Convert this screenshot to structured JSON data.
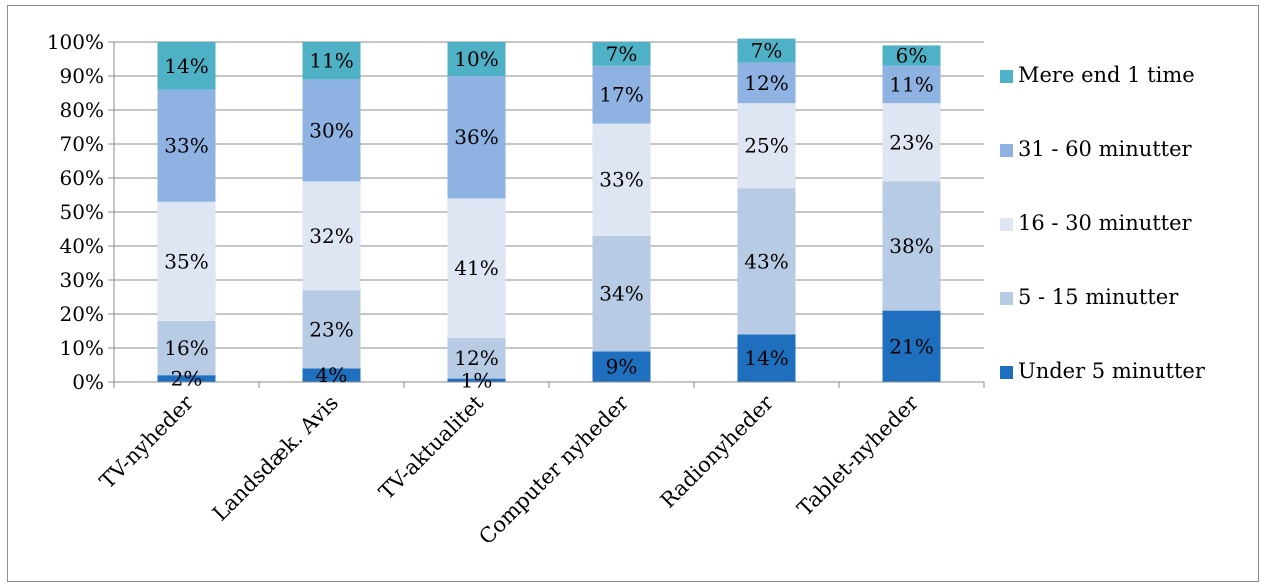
{
  "chart_data": {
    "type": "bar",
    "stacked": true,
    "percent_stacked": true,
    "categories": [
      "TV-nyheder",
      "Landsdæk. Avis",
      "TV-aktualitet",
      "Computer nyheder",
      "Radionyheder",
      "Tablet-nyheder"
    ],
    "series": [
      {
        "name": "Under 5 minutter",
        "color": "#1f6fbf",
        "values": [
          2,
          4,
          1,
          9,
          14,
          21
        ],
        "labels": [
          "2%",
          "4%",
          "1%",
          "9%",
          "14%",
          "21%"
        ]
      },
      {
        "name": "5 - 15 minutter",
        "color": "#b7cbe4",
        "values": [
          16,
          23,
          12,
          34,
          43,
          38
        ],
        "labels": [
          "16%",
          "23%",
          "12%",
          "34%",
          "43%",
          "38%"
        ]
      },
      {
        "name": "16 - 30 minutter",
        "color": "#dde6f2",
        "values": [
          35,
          32,
          41,
          33,
          25,
          23
        ],
        "labels": [
          "35%",
          "32%",
          "41%",
          "33%",
          "25%",
          "23%"
        ]
      },
      {
        "name": "31 - 60 minutter",
        "color": "#8eb2e2",
        "values": [
          33,
          30,
          36,
          17,
          12,
          11
        ],
        "labels": [
          "33%",
          "30%",
          "36%",
          "17%",
          "12%",
          "11%"
        ]
      },
      {
        "name": "Mere end 1 time",
        "color": "#4fb1c6",
        "values": [
          14,
          11,
          10,
          7,
          7,
          6
        ],
        "labels": [
          "14%",
          "11%",
          "10%",
          "7%",
          "7%",
          "6%"
        ]
      }
    ],
    "ylim": [
      0,
      100
    ],
    "yticks": [
      "0%",
      "10%",
      "20%",
      "30%",
      "40%",
      "50%",
      "60%",
      "70%",
      "80%",
      "90%",
      "100%"
    ],
    "grid": true,
    "legend_position": "right"
  }
}
